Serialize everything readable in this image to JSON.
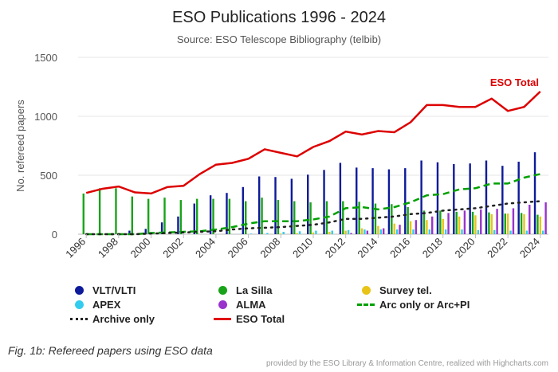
{
  "chart_data": {
    "type": "bar",
    "title": "ESO Publications 1996 - 2024",
    "subtitle": "Source: ESO Telescope Bibliography (telbib)",
    "ylabel": "No. refereed papers",
    "xlabel": "",
    "ylim": [
      0,
      1500
    ],
    "yticks": [
      0,
      500,
      1000,
      1500
    ],
    "categories": [
      "1996",
      "1997",
      "1998",
      "1999",
      "2000",
      "2001",
      "2002",
      "2003",
      "2004",
      "2005",
      "2006",
      "2007",
      "2008",
      "2009",
      "2010",
      "2011",
      "2012",
      "2013",
      "2014",
      "2015",
      "2016",
      "2017",
      "2018",
      "2019",
      "2020",
      "2021",
      "2022",
      "2023",
      "2024"
    ],
    "xtick_labels": [
      "1996",
      "1998",
      "2000",
      "2002",
      "2004",
      "2006",
      "2008",
      "2010",
      "2012",
      "2014",
      "2016",
      "2018",
      "2020",
      "2022",
      "2024"
    ],
    "grid": true,
    "legend_position": "bottom",
    "series": [
      {
        "name": "VLT/VLTI",
        "kind": "bar",
        "color": "#0d1a9a",
        "values": [
          0,
          0,
          0,
          30,
          45,
          100,
          150,
          260,
          330,
          350,
          400,
          490,
          485,
          470,
          505,
          545,
          605,
          565,
          560,
          550,
          560,
          625,
          610,
          595,
          600,
          625,
          580,
          615,
          695
        ]
      },
      {
        "name": "La Silla",
        "kind": "bar",
        "color": "#19a319",
        "values": [
          345,
          390,
          390,
          320,
          300,
          310,
          290,
          300,
          300,
          300,
          280,
          310,
          290,
          280,
          270,
          280,
          280,
          275,
          260,
          255,
          230,
          200,
          200,
          190,
          190,
          185,
          175,
          180,
          165
        ]
      },
      {
        "name": "Survey tel.",
        "kind": "bar",
        "color": "#e8c419",
        "values": [
          0,
          0,
          0,
          0,
          0,
          0,
          0,
          0,
          0,
          0,
          0,
          0,
          5,
          10,
          15,
          20,
          30,
          50,
          70,
          90,
          110,
          120,
          130,
          150,
          160,
          170,
          175,
          170,
          150
        ]
      },
      {
        "name": "APEX",
        "kind": "bar",
        "color": "#33ccee",
        "values": [
          0,
          0,
          0,
          0,
          0,
          0,
          0,
          0,
          0,
          0,
          5,
          10,
          20,
          25,
          30,
          30,
          35,
          40,
          40,
          40,
          40,
          40,
          40,
          40,
          35,
          35,
          30,
          30,
          30
        ]
      },
      {
        "name": "ALMA",
        "kind": "bar",
        "color": "#9933cc",
        "values": [
          0,
          0,
          0,
          0,
          0,
          0,
          0,
          0,
          0,
          0,
          0,
          0,
          0,
          0,
          0,
          0,
          10,
          30,
          50,
          80,
          120,
          150,
          180,
          200,
          210,
          215,
          220,
          250,
          270
        ]
      },
      {
        "name": "Arc only or Arc+PI",
        "kind": "line",
        "style": "dash",
        "color": "#00a000",
        "values": [
          0,
          0,
          0,
          0,
          10,
          15,
          20,
          25,
          40,
          60,
          90,
          110,
          110,
          110,
          125,
          150,
          220,
          230,
          210,
          230,
          270,
          330,
          340,
          380,
          390,
          430,
          430,
          480,
          510
        ]
      },
      {
        "name": "Archive only",
        "kind": "line",
        "style": "dot",
        "color": "#222222",
        "values": [
          0,
          0,
          0,
          0,
          5,
          10,
          15,
          20,
          25,
          40,
          50,
          55,
          60,
          70,
          80,
          100,
          130,
          130,
          140,
          150,
          170,
          180,
          200,
          210,
          220,
          240,
          260,
          270,
          280
        ]
      },
      {
        "name": "ESO Total",
        "kind": "line",
        "style": "solid",
        "color": "#dd0000",
        "values": [
          350,
          385,
          405,
          355,
          345,
          400,
          410,
          510,
          590,
          605,
          640,
          720,
          690,
          660,
          740,
          790,
          870,
          845,
          875,
          865,
          950,
          1095,
          1095,
          1080,
          1080,
          1150,
          1045,
          1080,
          1210
        ]
      }
    ],
    "annotation": "ESO Total"
  },
  "legend": {
    "items": [
      {
        "label": "VLT/VLTI",
        "symbol": "dot",
        "color": "#0d1a9a"
      },
      {
        "label": "La Silla",
        "symbol": "dot",
        "color": "#19a319"
      },
      {
        "label": "Survey tel.",
        "symbol": "dot",
        "color": "#e8c419"
      },
      {
        "label": "APEX",
        "symbol": "dot",
        "color": "#33ccee"
      },
      {
        "label": "ALMA",
        "symbol": "dot",
        "color": "#9933cc"
      },
      {
        "label": "Arc only or Arc+PI",
        "symbol": "dash",
        "color": "#00a000"
      },
      {
        "label": "Archive only",
        "symbol": "dots",
        "color": "#222222"
      },
      {
        "label": "ESO Total",
        "symbol": "solid",
        "color": "#dd0000"
      }
    ]
  },
  "caption": "Fig. 1b: Refereed papers using ESO data",
  "credits": "provided by the ESO Library & Information Centre, realized with Highcharts.com"
}
